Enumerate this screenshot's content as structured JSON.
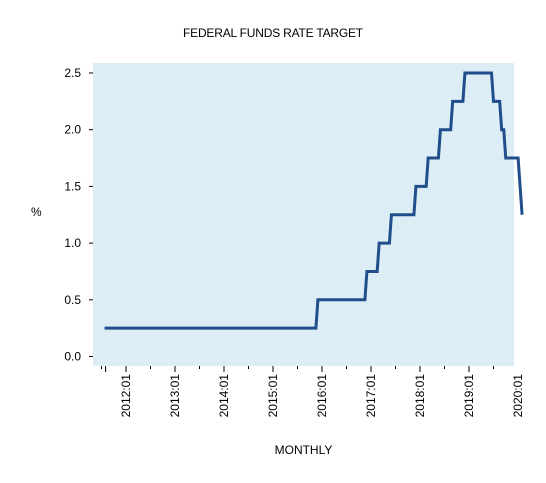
{
  "chart_data": {
    "type": "line",
    "title": "FEDERAL  FUNDS  RATE TARGET",
    "xlabel": "MONTHLY",
    "ylabel": "%",
    "ylim": [
      0,
      2.5
    ],
    "yticks": [
      {
        "value": 0.0,
        "label": "0.0"
      },
      {
        "value": 0.5,
        "label": "0.5"
      },
      {
        "value": 1.0,
        "label": "1.0"
      },
      {
        "value": 1.5,
        "label": "1.5"
      },
      {
        "value": 2.0,
        "label": "2.0"
      },
      {
        "value": 2.5,
        "label": "2.5"
      }
    ],
    "xticks": [
      "2012:01",
      "2013:01",
      "2014:01",
      "2015:01",
      "2016:01",
      "2017:01",
      "2018:01",
      "2019:01",
      "2020:01"
    ],
    "grid": false,
    "colors": {
      "plot_background": "#dcedf5",
      "line": "#1f4e8a"
    },
    "series": [
      {
        "x": [
          "2011:08",
          "2015:12",
          "2016:12",
          "2017:03",
          "2017:06",
          "2017:12",
          "2018:03",
          "2018:06",
          "2018:09",
          "2018:12",
          "2019:07",
          "2019:09",
          "2019:10",
          "2020:02"
        ],
        "values": [
          0.25,
          0.5,
          0.75,
          1.0,
          1.25,
          1.5,
          1.75,
          2.0,
          2.25,
          2.5,
          2.25,
          2.0,
          1.75,
          1.25
        ]
      }
    ]
  }
}
